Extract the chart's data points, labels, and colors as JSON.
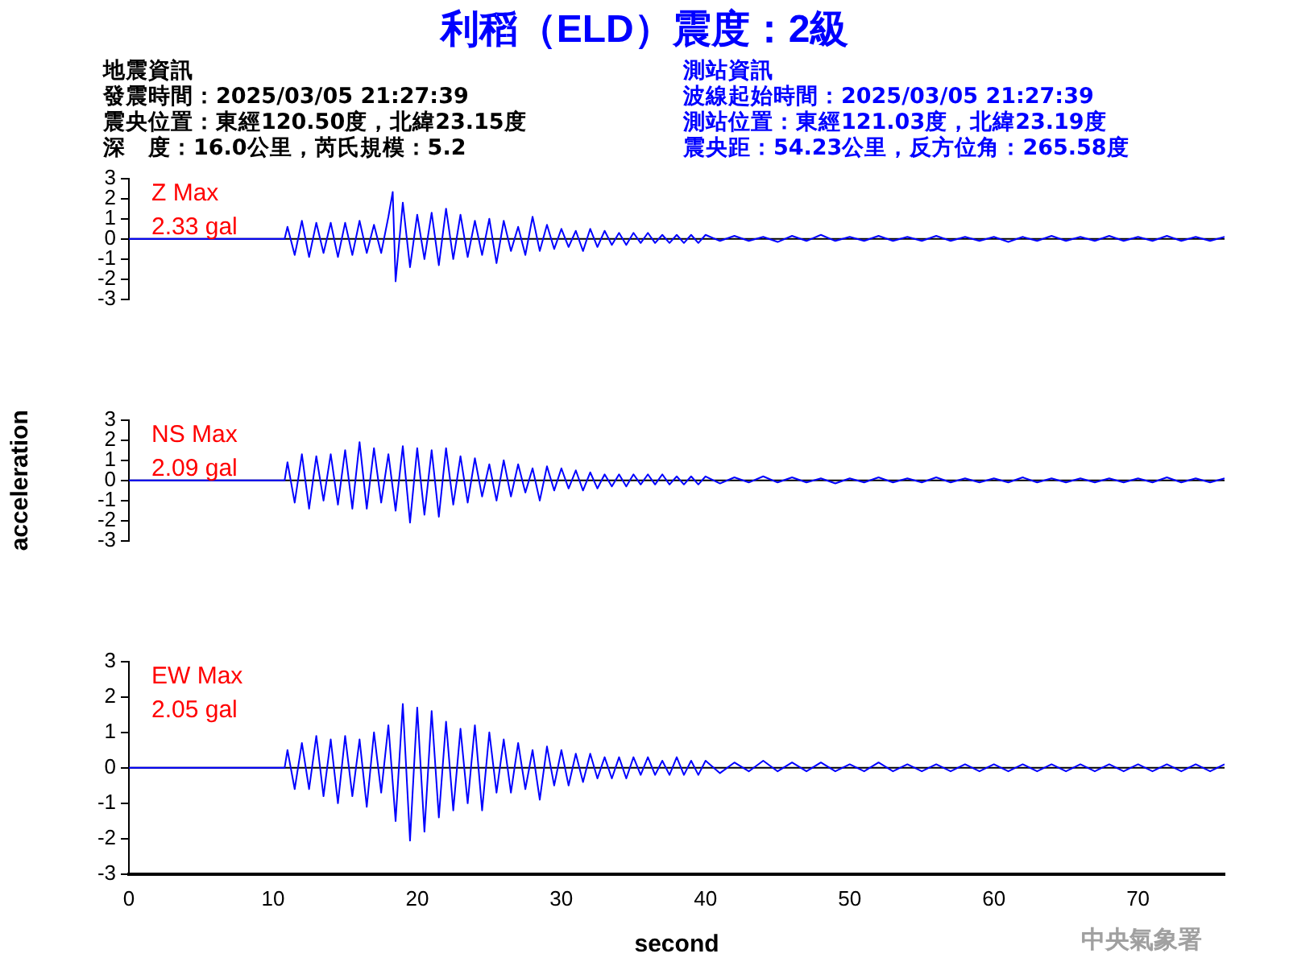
{
  "chart_data": [
    {
      "type": "other",
      "title": "利稻（ELD）震度：2級",
      "annotations": [
        "地震資訊",
        "發震時間：2025/03/05 21:27:39",
        "震央位置：東經120.50度，北緯23.15度",
        "深　度：16.0公里，芮氏規模：5.2",
        "測站資訊",
        "波線起始時間：2025/03/05 21:27:39",
        "測站位置：東經121.03度，北緯23.19度",
        "震央距：54.23公里，反方位角：265.58度"
      ]
    },
    {
      "type": "line",
      "annotations": [
        "Z Max",
        "2.33 gal"
      ],
      "xlim": [
        0,
        76
      ],
      "ylim": [
        -3,
        3
      ],
      "yticks": [
        -3,
        -2,
        -1,
        0,
        1,
        2,
        3
      ],
      "tick_labels": "y",
      "grid": false,
      "legend": false,
      "ref_lines": [
        {
          "axis": "y",
          "value": 0,
          "color": "#000000"
        }
      ],
      "x": [
        0,
        10.8,
        11,
        11.5,
        12,
        12.5,
        13,
        13.5,
        14,
        14.5,
        15,
        15.5,
        16,
        16.5,
        17,
        17.5,
        18,
        18.3,
        18.5,
        19,
        19.5,
        20,
        20.5,
        21,
        21.5,
        22,
        22.5,
        23,
        23.5,
        24,
        24.5,
        25,
        25.5,
        26,
        26.5,
        27,
        27.5,
        28,
        28.5,
        29,
        29.5,
        30,
        30.5,
        31,
        31.5,
        32,
        32.5,
        33,
        33.5,
        34,
        34.5,
        35,
        35.5,
        36,
        36.5,
        37,
        37.5,
        38,
        38.5,
        39,
        39.5,
        40,
        41,
        42,
        43,
        44,
        45,
        46,
        47,
        48,
        49,
        50,
        51,
        52,
        53,
        54,
        55,
        56,
        57,
        58,
        59,
        60,
        61,
        62,
        63,
        64,
        65,
        66,
        67,
        68,
        69,
        70,
        71,
        72,
        73,
        74,
        75,
        76
      ],
      "series": [
        {
          "color": "#0000ff",
          "values": [
            0,
            0,
            0.6,
            -0.8,
            0.9,
            -0.9,
            0.8,
            -0.7,
            0.8,
            -0.9,
            0.8,
            -0.8,
            0.9,
            -0.7,
            0.7,
            -0.7,
            1.1,
            2.33,
            -2.1,
            1.8,
            -1.4,
            1.2,
            -1.0,
            1.3,
            -1.3,
            1.5,
            -1.0,
            1.2,
            -0.9,
            0.9,
            -0.8,
            1.0,
            -1.2,
            0.9,
            -0.6,
            0.6,
            -0.8,
            1.1,
            -0.6,
            0.7,
            -0.5,
            0.5,
            -0.4,
            0.4,
            -0.6,
            0.5,
            -0.4,
            0.4,
            -0.3,
            0.3,
            -0.3,
            0.3,
            -0.2,
            0.3,
            -0.2,
            0.2,
            -0.2,
            0.2,
            -0.2,
            0.2,
            -0.2,
            0.2,
            -0.1,
            0.15,
            -0.1,
            0.1,
            -0.15,
            0.15,
            -0.1,
            0.2,
            -0.1,
            0.1,
            -0.1,
            0.15,
            -0.1,
            0.1,
            -0.1,
            0.15,
            -0.1,
            0.1,
            -0.1,
            0.1,
            -0.15,
            0.1,
            -0.1,
            0.15,
            -0.1,
            0.1,
            -0.1,
            0.15,
            -0.1,
            0.1,
            -0.1,
            0.15,
            -0.1,
            0.1,
            -0.1,
            0.1
          ]
        }
      ]
    },
    {
      "type": "line",
      "ylabel": "acceleration",
      "annotations": [
        "NS Max",
        "2.09 gal"
      ],
      "xlim": [
        0,
        76
      ],
      "ylim": [
        -3,
        3
      ],
      "yticks": [
        -3,
        -2,
        -1,
        0,
        1,
        2,
        3
      ],
      "tick_labels": "y",
      "grid": false,
      "legend": false,
      "ref_lines": [
        {
          "axis": "y",
          "value": 0,
          "color": "#000000"
        }
      ],
      "x": [
        0,
        10.8,
        11,
        11.5,
        12,
        12.5,
        13,
        13.5,
        14,
        14.5,
        15,
        15.5,
        16,
        16.5,
        17,
        17.5,
        18,
        18.5,
        19,
        19.5,
        20,
        20.5,
        21,
        21.5,
        22,
        22.5,
        23,
        23.5,
        24,
        24.5,
        25,
        25.5,
        26,
        26.5,
        27,
        27.5,
        28,
        28.5,
        29,
        29.5,
        30,
        30.5,
        31,
        31.5,
        32,
        32.5,
        33,
        33.5,
        34,
        34.5,
        35,
        35.5,
        36,
        36.5,
        37,
        37.5,
        38,
        38.5,
        39,
        39.5,
        40,
        41,
        42,
        43,
        44,
        45,
        46,
        47,
        48,
        49,
        50,
        51,
        52,
        53,
        54,
        55,
        56,
        57,
        58,
        59,
        60,
        61,
        62,
        63,
        64,
        65,
        66,
        67,
        68,
        69,
        70,
        71,
        72,
        73,
        74,
        75,
        76
      ],
      "series": [
        {
          "color": "#0000ff",
          "values": [
            0,
            0,
            0.9,
            -1.1,
            1.3,
            -1.4,
            1.2,
            -1.0,
            1.3,
            -1.2,
            1.5,
            -1.4,
            1.9,
            -1.4,
            1.6,
            -1.1,
            1.3,
            -1.5,
            1.7,
            -2.09,
            1.6,
            -1.7,
            1.5,
            -1.8,
            1.6,
            -1.2,
            1.2,
            -1.1,
            1.1,
            -0.8,
            0.8,
            -1.0,
            1.0,
            -0.8,
            0.8,
            -0.6,
            0.6,
            -1.0,
            0.7,
            -0.5,
            0.6,
            -0.4,
            0.5,
            -0.5,
            0.4,
            -0.4,
            0.3,
            -0.3,
            0.3,
            -0.3,
            0.3,
            -0.2,
            0.3,
            -0.2,
            0.3,
            -0.2,
            0.2,
            -0.2,
            0.2,
            -0.2,
            0.2,
            -0.15,
            0.15,
            -0.1,
            0.2,
            -0.1,
            0.15,
            -0.1,
            0.1,
            -0.15,
            0.1,
            -0.1,
            0.15,
            -0.1,
            0.1,
            -0.1,
            0.15,
            -0.1,
            0.1,
            -0.1,
            0.1,
            -0.1,
            0.15,
            -0.1,
            0.1,
            -0.1,
            0.1,
            -0.1,
            0.1,
            -0.1,
            0.1,
            -0.1,
            0.15,
            -0.1,
            0.1,
            -0.1,
            0.1
          ]
        }
      ]
    },
    {
      "type": "line",
      "xlabel": "second",
      "annotations": [
        "EW Max",
        "2.05 gal",
        "中央氣象署"
      ],
      "xlim": [
        0,
        76
      ],
      "xticks": [
        0,
        10,
        20,
        30,
        40,
        50,
        60,
        70
      ],
      "ylim": [
        -3,
        3
      ],
      "yticks": [
        -3,
        -2,
        -1,
        0,
        1,
        2,
        3
      ],
      "grid": false,
      "legend": false,
      "ref_lines": [
        {
          "axis": "y",
          "value": 0,
          "color": "#000000"
        }
      ],
      "x": [
        0,
        10.8,
        11,
        11.5,
        12,
        12.5,
        13,
        13.5,
        14,
        14.5,
        15,
        15.5,
        16,
        16.5,
        17,
        17.5,
        18,
        18.5,
        19,
        19.5,
        20,
        20.5,
        21,
        21.5,
        22,
        22.5,
        23,
        23.5,
        24,
        24.5,
        25,
        25.5,
        26,
        26.5,
        27,
        27.5,
        28,
        28.5,
        29,
        29.5,
        30,
        30.5,
        31,
        31.5,
        32,
        32.5,
        33,
        33.5,
        34,
        34.5,
        35,
        35.5,
        36,
        36.5,
        37,
        37.5,
        38,
        38.5,
        39,
        39.5,
        40,
        41,
        42,
        43,
        44,
        45,
        46,
        47,
        48,
        49,
        50,
        51,
        52,
        53,
        54,
        55,
        56,
        57,
        58,
        59,
        60,
        61,
        62,
        63,
        64,
        65,
        66,
        67,
        68,
        69,
        70,
        71,
        72,
        73,
        74,
        75,
        76
      ],
      "series": [
        {
          "color": "#0000ff",
          "values": [
            0,
            0,
            0.5,
            -0.6,
            0.7,
            -0.6,
            0.9,
            -0.8,
            0.8,
            -1.0,
            0.9,
            -0.8,
            0.8,
            -1.1,
            1.0,
            -0.7,
            1.2,
            -1.5,
            1.8,
            -2.05,
            1.7,
            -1.8,
            1.6,
            -1.4,
            1.3,
            -1.2,
            1.1,
            -1.0,
            1.2,
            -1.2,
            1.0,
            -0.7,
            0.8,
            -0.7,
            0.7,
            -0.6,
            0.5,
            -0.9,
            0.6,
            -0.5,
            0.5,
            -0.5,
            0.4,
            -0.4,
            0.4,
            -0.3,
            0.3,
            -0.3,
            0.3,
            -0.3,
            0.3,
            -0.2,
            0.3,
            -0.2,
            0.2,
            -0.2,
            0.3,
            -0.2,
            0.2,
            -0.2,
            0.2,
            -0.15,
            0.15,
            -0.1,
            0.2,
            -0.1,
            0.15,
            -0.1,
            0.15,
            -0.1,
            0.1,
            -0.1,
            0.15,
            -0.1,
            0.1,
            -0.1,
            0.1,
            -0.1,
            0.1,
            -0.1,
            0.1,
            -0.1,
            0.1,
            -0.1,
            0.1,
            -0.1,
            0.1,
            -0.1,
            0.1,
            -0.1,
            0.1,
            -0.1,
            0.1,
            -0.1,
            0.1,
            -0.1,
            0.1
          ]
        }
      ]
    }
  ]
}
